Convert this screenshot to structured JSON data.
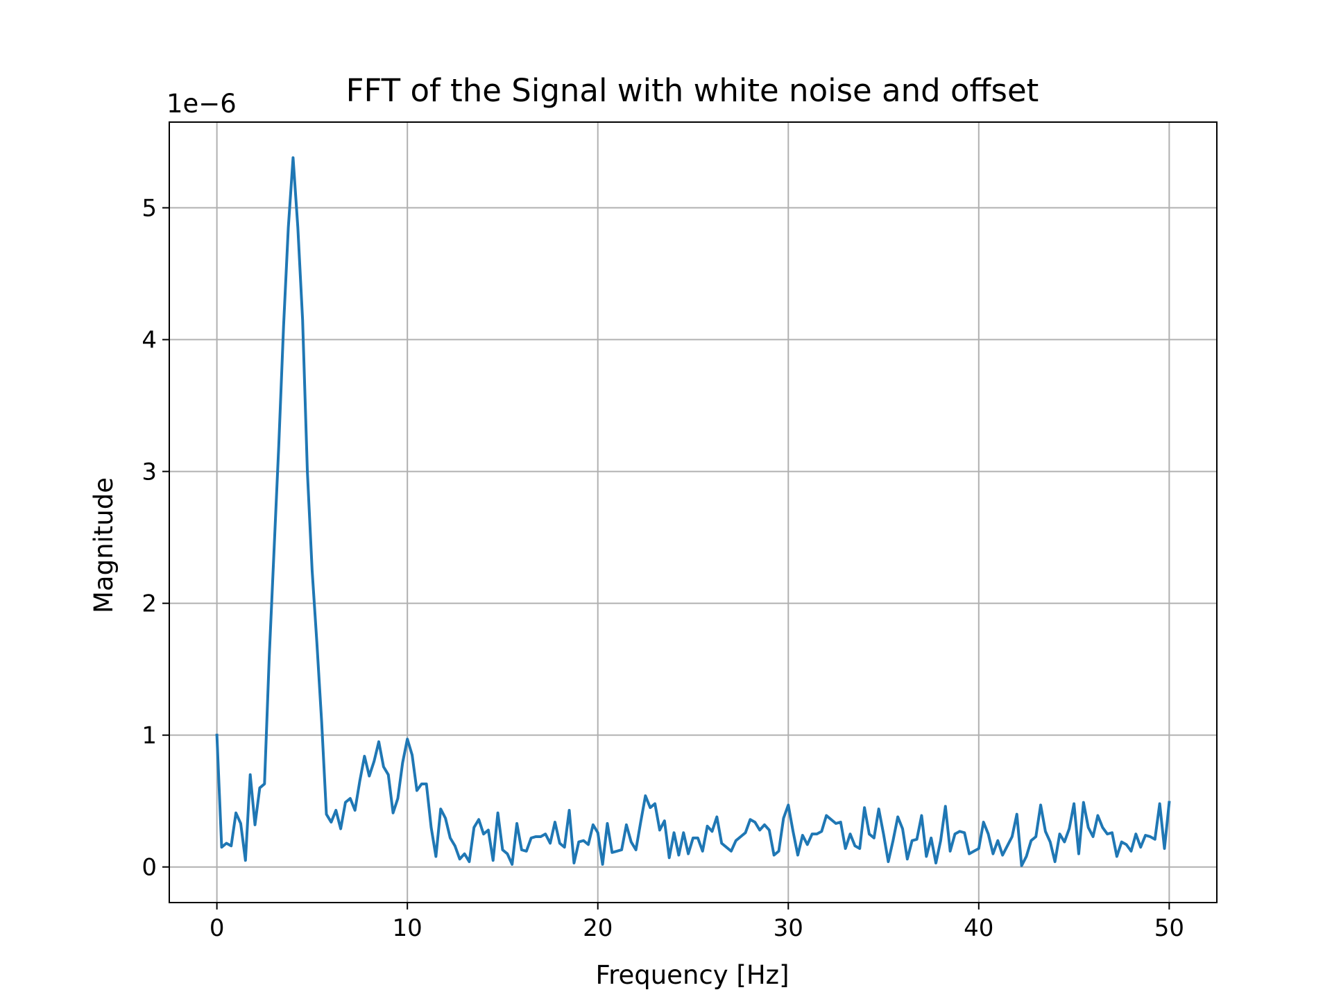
{
  "chart_data": {
    "type": "line",
    "title": "FFT of the Signal with white noise and offset",
    "xlabel": "Frequency [Hz]",
    "ylabel": "Magnitude",
    "y_offset_text": "1e−6",
    "xlim": [
      -2.5,
      52.5
    ],
    "ylim": [
      -0.27,
      5.65
    ],
    "x_ticks": [
      0,
      10,
      20,
      30,
      40,
      50
    ],
    "x_tick_labels": [
      "0",
      "10",
      "20",
      "30",
      "40",
      "50"
    ],
    "y_ticks": [
      0,
      1,
      2,
      3,
      4,
      5
    ],
    "y_tick_labels": [
      "0",
      "1",
      "2",
      "3",
      "4",
      "5"
    ],
    "grid": true,
    "series": [
      {
        "color": "#1f77b4",
        "x": [
          0,
          0.25,
          0.5,
          0.75,
          1,
          1.25,
          1.5,
          1.75,
          2,
          2.25,
          2.5,
          2.75,
          3,
          3.25,
          3.5,
          3.75,
          4,
          4.25,
          4.5,
          4.75,
          5,
          5.25,
          5.5,
          5.75,
          6,
          6.25,
          6.5,
          6.75,
          7,
          7.25,
          7.5,
          7.75,
          8,
          8.25,
          8.5,
          8.75,
          9,
          9.25,
          9.5,
          9.75,
          10,
          10.25,
          10.5,
          10.75,
          11,
          11.25,
          11.5,
          11.75,
          12,
          12.25,
          12.5,
          12.75,
          13,
          13.25,
          13.5,
          13.75,
          14,
          14.25,
          14.5,
          14.75,
          15,
          15.25,
          15.5,
          15.75,
          16,
          16.25,
          16.5,
          16.75,
          17,
          17.25,
          17.5,
          17.75,
          18,
          18.25,
          18.5,
          18.75,
          19,
          19.25,
          19.5,
          19.75,
          20,
          20.25,
          20.5,
          20.75,
          21,
          21.25,
          21.5,
          21.75,
          22,
          22.25,
          22.5,
          22.75,
          23,
          23.25,
          23.5,
          23.75,
          24,
          24.25,
          24.5,
          24.75,
          25,
          25.25,
          25.5,
          25.75,
          26,
          26.25,
          26.5,
          26.75,
          27,
          27.25,
          27.5,
          27.75,
          28,
          28.25,
          28.5,
          28.75,
          29,
          29.25,
          29.5,
          29.75,
          30,
          30.25,
          30.5,
          30.75,
          31,
          31.25,
          31.5,
          31.75,
          32,
          32.25,
          32.5,
          32.75,
          33,
          33.25,
          33.5,
          33.75,
          34,
          34.25,
          34.5,
          34.75,
          35,
          35.25,
          35.5,
          35.75,
          36,
          36.25,
          36.5,
          36.75,
          37,
          37.25,
          37.5,
          37.75,
          38,
          38.25,
          38.5,
          38.75,
          39,
          39.25,
          39.5,
          39.75,
          40,
          40.25,
          40.5,
          40.75,
          41,
          41.25,
          41.5,
          41.75,
          42,
          42.25,
          42.5,
          42.75,
          43,
          43.25,
          43.5,
          43.75,
          44,
          44.25,
          44.5,
          44.75,
          45,
          45.25,
          45.5,
          45.75,
          46,
          46.25,
          46.5,
          46.75,
          47,
          47.25,
          47.5,
          47.75,
          48,
          48.25,
          48.5,
          48.75,
          49,
          49.25,
          49.5,
          49.75,
          50
        ],
        "y": [
          1.0,
          0.15,
          0.18,
          0.16,
          0.41,
          0.33,
          0.05,
          0.7,
          0.32,
          0.6,
          0.63,
          1.6,
          2.4,
          3.2,
          4.1,
          4.85,
          5.38,
          4.85,
          4.15,
          3.0,
          2.25,
          1.7,
          1.1,
          0.4,
          0.34,
          0.43,
          0.29,
          0.49,
          0.52,
          0.43,
          0.65,
          0.84,
          0.69,
          0.8,
          0.95,
          0.76,
          0.7,
          0.41,
          0.52,
          0.79,
          0.97,
          0.85,
          0.58,
          0.63,
          0.63,
          0.3,
          0.08,
          0.44,
          0.37,
          0.22,
          0.16,
          0.06,
          0.1,
          0.04,
          0.3,
          0.36,
          0.25,
          0.28,
          0.05,
          0.41,
          0.13,
          0.1,
          0.02,
          0.33,
          0.13,
          0.12,
          0.22,
          0.23,
          0.23,
          0.25,
          0.18,
          0.34,
          0.18,
          0.15,
          0.43,
          0.03,
          0.19,
          0.2,
          0.17,
          0.32,
          0.26,
          0.02,
          0.33,
          0.11,
          0.12,
          0.13,
          0.32,
          0.19,
          0.13,
          0.34,
          0.54,
          0.45,
          0.48,
          0.28,
          0.35,
          0.07,
          0.26,
          0.09,
          0.26,
          0.1,
          0.22,
          0.22,
          0.12,
          0.31,
          0.27,
          0.38,
          0.18,
          0.15,
          0.12,
          0.2,
          0.23,
          0.26,
          0.36,
          0.34,
          0.28,
          0.32,
          0.28,
          0.09,
          0.12,
          0.37,
          0.47,
          0.27,
          0.09,
          0.24,
          0.17,
          0.25,
          0.25,
          0.27,
          0.39,
          0.36,
          0.33,
          0.34,
          0.14,
          0.25,
          0.16,
          0.14,
          0.45,
          0.25,
          0.22,
          0.44,
          0.25,
          0.04,
          0.2,
          0.38,
          0.29,
          0.06,
          0.2,
          0.21,
          0.39,
          0.08,
          0.22,
          0.03,
          0.2,
          0.46,
          0.12,
          0.25,
          0.27,
          0.26,
          0.1,
          0.12,
          0.14,
          0.34,
          0.25,
          0.1,
          0.2,
          0.09,
          0.16,
          0.23,
          0.4,
          0.01,
          0.08,
          0.2,
          0.23,
          0.47,
          0.27,
          0.19,
          0.04,
          0.25,
          0.19,
          0.29,
          0.48,
          0.1,
          0.49,
          0.3,
          0.23,
          0.39,
          0.3,
          0.25,
          0.26,
          0.08,
          0.19,
          0.17,
          0.12,
          0.25,
          0.15,
          0.24,
          0.23,
          0.21,
          0.48,
          0.14,
          0.49
        ]
      }
    ]
  }
}
